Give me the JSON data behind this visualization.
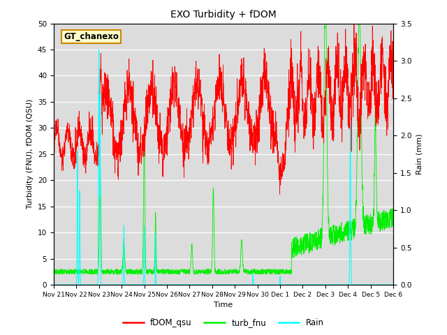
{
  "title": "EXO Turbidity + fDOM",
  "xlabel": "Time",
  "ylabel_left": "Turbidity (FNU), fDOM (QSU)",
  "ylabel_right": "Rain (mm)",
  "ylim_left": [
    0,
    50
  ],
  "ylim_right": [
    0,
    3.5
  ],
  "yticks_left": [
    0,
    5,
    10,
    15,
    20,
    25,
    30,
    35,
    40,
    45,
    50
  ],
  "yticks_right": [
    0.0,
    0.5,
    1.0,
    1.5,
    2.0,
    2.5,
    3.0,
    3.5
  ],
  "xtick_labels": [
    "Nov 21",
    "Nov 22",
    "Nov 23",
    "Nov 24",
    "Nov 25",
    "Nov 26",
    "Nov 27",
    "Nov 28",
    "Nov 29",
    "Nov 30",
    "Dec 1",
    "Dec 2",
    "Dec 3",
    "Dec 4",
    "Dec 5",
    "Dec 6"
  ],
  "annotation_text": "GT_chanexo",
  "annotation_color": "#cc8800",
  "background_color": "#dcdcdc",
  "color_fdom": "#ff0000",
  "color_turb": "#00ee00",
  "color_rain": "#00ffff",
  "legend_labels": [
    "fDOM_qsu",
    "turb_fnu",
    "Rain"
  ],
  "n_points": 2160,
  "figsize": [
    6.4,
    4.8
  ],
  "dpi": 100
}
